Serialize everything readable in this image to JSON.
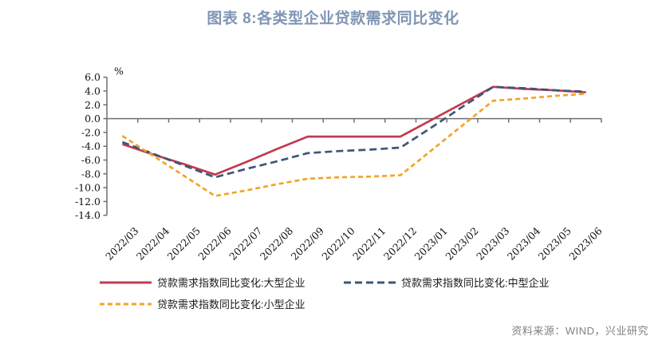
{
  "title": "图表 8:各类型企业贷款需求同比变化",
  "title_color": "#8095B4",
  "footer": {
    "source_label": "资料来源：WIND，兴业研究"
  },
  "axis": {
    "unit_label": "%",
    "axis_color": "#6F6F6F"
  },
  "chart_data": {
    "type": "line",
    "title": "图表 8:各类型企业贷款需求同比变化",
    "xlabel": "",
    "ylabel": "%",
    "ylim": [
      -14.0,
      6.0
    ],
    "ytick_step": 2.0,
    "grid": false,
    "legend_position": "bottom",
    "categories": [
      "2022/03",
      "2022/04",
      "2022/05",
      "2022/06",
      "2022/07",
      "2022/08",
      "2022/09",
      "2022/10",
      "2022/11",
      "2022/12",
      "2023/01",
      "2023/02",
      "2023/03",
      "2023/04",
      "2023/05",
      "2023/06"
    ],
    "quarterly_anchor_note": "quarterly survey values at 2022/03, 2022/06, 2022/09, 2022/12, 2023/03, 2023/06; intermediate months linearly interpolated",
    "series": [
      {
        "id": "large",
        "name": "贷款需求指数同比变化:大型企业",
        "color": "#C23B4F",
        "dash": "",
        "quarterly_values": [
          -3.7,
          -8.1,
          -2.6,
          -2.6,
          4.6,
          3.8
        ],
        "values": [
          -3.7,
          -5.2,
          -6.6,
          -8.1,
          -6.3,
          -4.4,
          -2.6,
          -2.6,
          -2.6,
          -2.6,
          -0.2,
          2.2,
          4.6,
          4.3,
          4.1,
          3.8
        ]
      },
      {
        "id": "medium",
        "name": "贷款需求指数同比变化:中型企业",
        "color": "#3E5677",
        "dash": "9,5",
        "quarterly_values": [
          -3.4,
          -8.5,
          -5.0,
          -4.2,
          4.6,
          3.9
        ],
        "values": [
          -3.4,
          -5.1,
          -6.8,
          -8.5,
          -7.3,
          -6.2,
          -5.0,
          -4.7,
          -4.5,
          -4.2,
          -1.3,
          1.7,
          4.6,
          4.4,
          4.1,
          3.9
        ]
      },
      {
        "id": "small",
        "name": "贷款需求指数同比变化:小型企业",
        "color": "#F2A42A",
        "dash": "6,4",
        "quarterly_values": [
          -2.5,
          -11.2,
          -8.7,
          -8.2,
          2.6,
          3.6
        ],
        "values": [
          -2.5,
          -5.4,
          -8.3,
          -11.2,
          -10.4,
          -9.5,
          -8.7,
          -8.5,
          -8.4,
          -8.2,
          -4.6,
          -1.0,
          2.6,
          2.9,
          3.3,
          3.6
        ]
      }
    ]
  }
}
